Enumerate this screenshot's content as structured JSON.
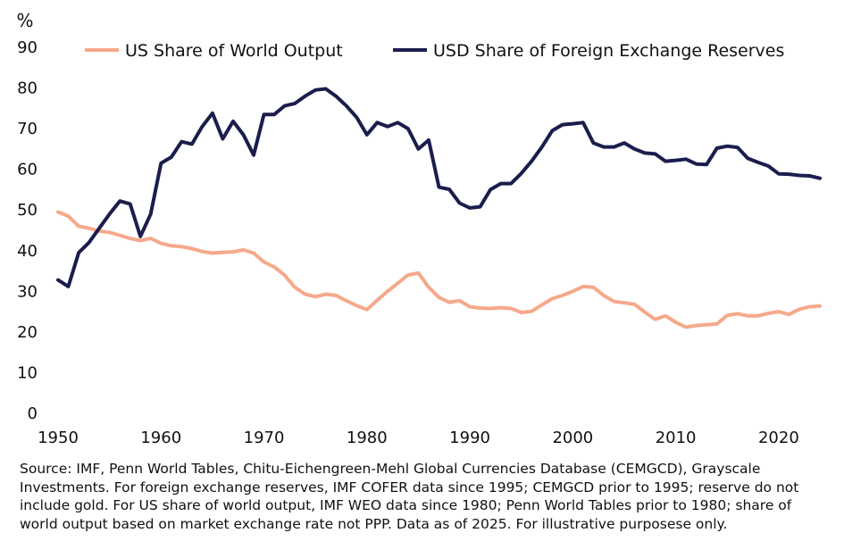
{
  "chart_data": {
    "type": "line",
    "unit_label": "%",
    "ylim": [
      0,
      90
    ],
    "xlim": [
      1950,
      2024
    ],
    "yticks": [
      "0",
      "10",
      "20",
      "30",
      "40",
      "50",
      "60",
      "70",
      "80",
      "90"
    ],
    "xticks": [
      "1950",
      "1960",
      "1970",
      "1980",
      "1990",
      "2000",
      "2010",
      "2020"
    ],
    "grid": false,
    "legend_position": "top",
    "series": [
      {
        "name": "US Share of World Output",
        "color": "#f5a98b",
        "x": [
          1950,
          1951,
          1952,
          1953,
          1954,
          1955,
          1956,
          1957,
          1958,
          1959,
          1960,
          1961,
          1962,
          1963,
          1964,
          1965,
          1966,
          1967,
          1968,
          1969,
          1970,
          1971,
          1972,
          1973,
          1974,
          1975,
          1976,
          1977,
          1978,
          1979,
          1980,
          1981,
          1982,
          1983,
          1984,
          1985,
          1986,
          1987,
          1988,
          1989,
          1990,
          1991,
          1992,
          1993,
          1994,
          1995,
          1996,
          1997,
          1998,
          1999,
          2000,
          2001,
          2002,
          2003,
          2004,
          2005,
          2006,
          2007,
          2008,
          2009,
          2010,
          2011,
          2012,
          2013,
          2014,
          2015,
          2016,
          2017,
          2018,
          2019,
          2020,
          2021,
          2022,
          2023,
          2024
        ],
        "values": [
          49.5,
          48.5,
          46,
          45.5,
          44.8,
          44.5,
          43.8,
          43,
          42.5,
          43,
          41.8,
          41.2,
          41,
          40.5,
          39.8,
          39.4,
          39.6,
          39.7,
          40.2,
          39.4,
          37.2,
          36,
          34,
          31,
          29.3,
          28.7,
          29.3,
          29,
          27.7,
          26.5,
          25.5,
          27.8,
          30,
          32,
          34,
          34.5,
          31,
          28.5,
          27.3,
          27.7,
          26.2,
          25.9,
          25.8,
          26,
          25.8,
          24.8,
          25.1,
          26.7,
          28.2,
          29,
          30,
          31.2,
          31,
          29,
          27.5,
          27.2,
          26.8,
          24.9,
          23.1,
          24,
          22.4,
          21.2,
          21.6,
          21.8,
          22,
          24.1,
          24.5,
          24,
          24,
          24.6,
          25,
          24.3,
          25.6,
          26.2,
          26.4
        ]
      },
      {
        "name": "USD Share of Foreign Exchange Reserves",
        "color": "#1b1d4d",
        "x": [
          1950,
          1951,
          1952,
          1953,
          1954,
          1955,
          1956,
          1957,
          1958,
          1959,
          1960,
          1961,
          1962,
          1963,
          1964,
          1965,
          1966,
          1967,
          1968,
          1969,
          1970,
          1971,
          1972,
          1973,
          1974,
          1975,
          1976,
          1977,
          1978,
          1979,
          1980,
          1981,
          1982,
          1983,
          1984,
          1985,
          1986,
          1987,
          1988,
          1989,
          1990,
          1991,
          1992,
          1993,
          1994,
          1995,
          1996,
          1997,
          1998,
          1999,
          2000,
          2001,
          2002,
          2003,
          2004,
          2005,
          2006,
          2007,
          2008,
          2009,
          2010,
          2011,
          2012,
          2013,
          2014,
          2015,
          2016,
          2017,
          2018,
          2019,
          2020,
          2021,
          2022,
          2023,
          2024
        ],
        "values": [
          32.8,
          31.2,
          39.5,
          42,
          45.5,
          49,
          52.2,
          51.5,
          43.5,
          49,
          61.5,
          63,
          66.8,
          66.2,
          70.5,
          73.8,
          67.5,
          71.8,
          68.5,
          63.5,
          73.5,
          73.5,
          75.6,
          76.2,
          78,
          79.5,
          79.8,
          78,
          75.6,
          72.8,
          68.5,
          71.5,
          70.5,
          71.5,
          70,
          65,
          67.2,
          55.6,
          55.1,
          51.7,
          50.5,
          50.8,
          55,
          56.5,
          56.5,
          59,
          62,
          65.5,
          69.5,
          71,
          71.2,
          71.5,
          66.5,
          65.5,
          65.5,
          66.5,
          65,
          64,
          63.8,
          62,
          62.2,
          62.5,
          61.3,
          61.2,
          65.2,
          65.7,
          65.4,
          62.7,
          61.7,
          60.8,
          58.9,
          58.8,
          58.5,
          58.4,
          57.8
        ]
      }
    ]
  },
  "source_note": "Source: IMF, Penn World Tables, Chitu-Eichengreen-Mehl Global Currencies Database (CEMGCD), Grayscale Investments. For foreign exchange reserves, IMF COFER data since 1995; CEMGCD prior to 1995; reserve do not include gold. For US share of world output, IMF WEO data since 1980; Penn World Tables prior to 1980; share of world output based on market exchange rate not PPP. Data as of 2025. For illustrative purposese only."
}
